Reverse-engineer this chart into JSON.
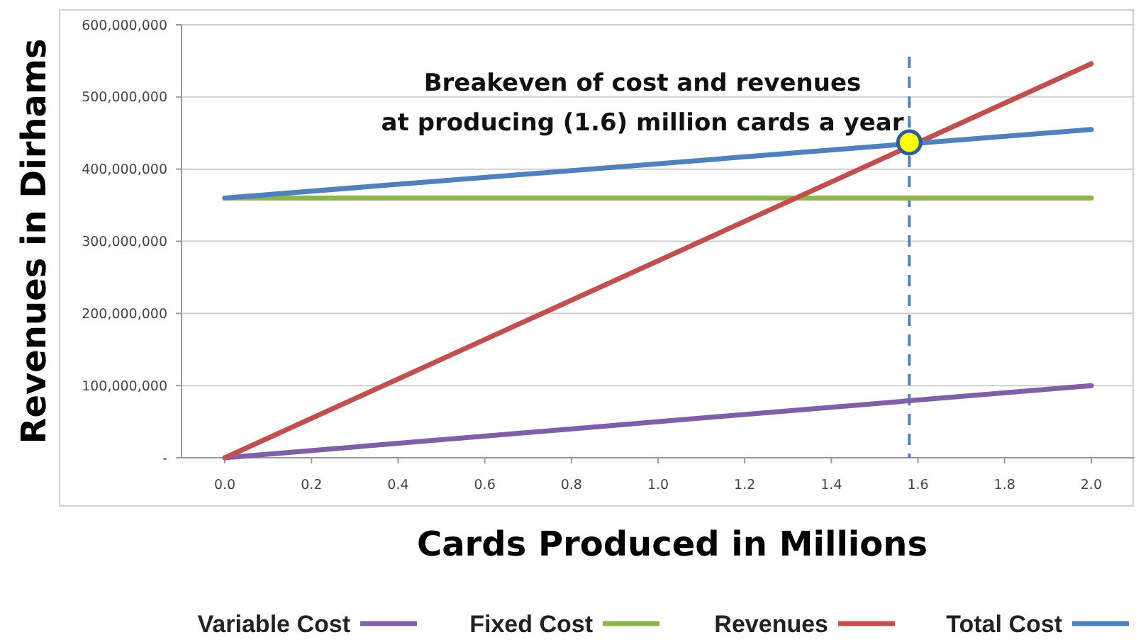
{
  "chart_data": {
    "type": "line",
    "xlabel": "Cards Produced in Millions",
    "ylabel": "Revenues in Dirhams",
    "x": [
      0,
      2
    ],
    "series": [
      {
        "name": "Variable Cost",
        "color": "#7f60a8",
        "values": [
          0,
          100000000
        ]
      },
      {
        "name": "Fixed Cost",
        "color": "#8cb54a",
        "values": [
          360000000,
          360000000
        ]
      },
      {
        "name": "Revenues",
        "color": "#c0504d",
        "values": [
          0,
          546000000
        ]
      },
      {
        "name": "Total Cost",
        "color": "#4f81bd",
        "values": [
          360000000,
          455000000
        ]
      },
      {
        "type": "scatter",
        "marker": "circle",
        "color": "#ffff00",
        "x": [
          1.58
        ],
        "values": [
          437000000
        ]
      }
    ],
    "xlim": [
      -0.1,
      2.1
    ],
    "xticks": [
      {
        "value": 0,
        "label": "0.0"
      },
      {
        "value": 0.2,
        "label": "0.2"
      },
      {
        "value": 0.4,
        "label": "0.4"
      },
      {
        "value": 0.6,
        "label": "0.6"
      },
      {
        "value": 0.8,
        "label": "0.8"
      },
      {
        "value": 1,
        "label": "1.0"
      },
      {
        "value": 1.2,
        "label": "1.2"
      },
      {
        "value": 1.4,
        "label": "1.4"
      },
      {
        "value": 1.6,
        "label": "1.6"
      },
      {
        "value": 1.8,
        "label": "1.8"
      },
      {
        "value": 2,
        "label": "2.0"
      }
    ],
    "ylim": [
      0,
      600000000
    ],
    "yticks": [
      {
        "value": 0,
        "label": "-"
      },
      {
        "value": 100000000,
        "label": "100,000,000"
      },
      {
        "value": 200000000,
        "label": "200,000,000"
      },
      {
        "value": 300000000,
        "label": "300,000,000"
      },
      {
        "value": 400000000,
        "label": "400,000,000"
      },
      {
        "value": 500000000,
        "label": "500,000,000"
      },
      {
        "value": 600000000,
        "label": "600,000,000"
      }
    ],
    "ref_lines": [
      {
        "axis": "x",
        "value": 1.58,
        "color": "#4f81bd",
        "line_style": "dashed"
      }
    ],
    "annotations": [
      "Breakeven of cost and revenues",
      "at producing (1.6) million cards a year"
    ],
    "grid": "y",
    "legend": "bottom",
    "marker": "none",
    "line_style": "solid"
  }
}
